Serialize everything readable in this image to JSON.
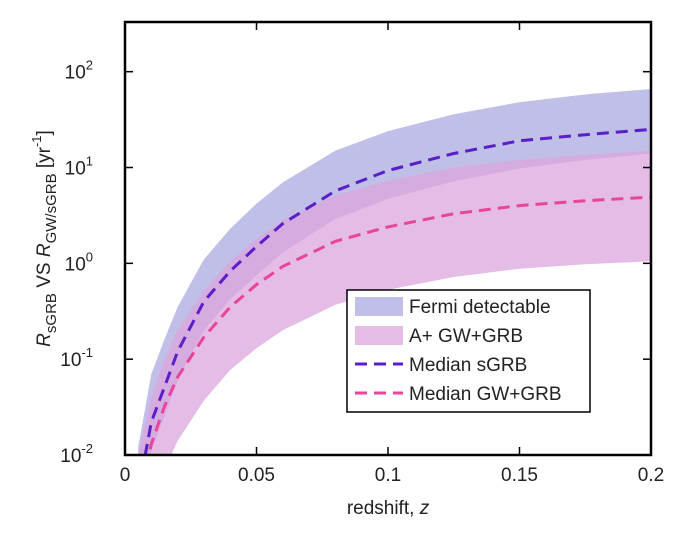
{
  "chart_data": {
    "type": "band-line",
    "x_label": [
      {
        "text": "redshift, ",
        "style": "normal"
      },
      {
        "text": "z",
        "style": "italic"
      }
    ],
    "y_label": [
      {
        "text": "R",
        "style": "italic"
      },
      {
        "text": "sGRB",
        "style": "sub"
      },
      {
        "text": " VS  ",
        "style": "normal"
      },
      {
        "text": "R",
        "style": "italic"
      },
      {
        "text": "GW/sGRB",
        "style": "sub"
      },
      {
        "text": " [yr",
        "style": "normal"
      },
      {
        "text": "-1",
        "style": "super"
      },
      {
        "text": "]",
        "style": "normal"
      }
    ],
    "x": [
      0.005,
      0.01,
      0.015,
      0.02,
      0.03,
      0.04,
      0.05,
      0.06,
      0.08,
      0.1,
      0.125,
      0.15,
      0.175,
      0.2
    ],
    "bands": [
      {
        "name": "Fermi detectable",
        "color": "#a9a9e0",
        "opacity": 0.75,
        "upper": [
          0.012,
          0.07,
          0.16,
          0.35,
          1.1,
          2.3,
          4.2,
          7,
          15,
          24,
          36,
          48,
          58,
          66
        ],
        "lower": [
          0.002,
          0.011,
          0.025,
          0.06,
          0.2,
          0.42,
          0.75,
          1.3,
          2.9,
          4.7,
          7.2,
          9.8,
          12,
          14
        ]
      },
      {
        "name": "A+ GW+GRB",
        "color": "#dba6de",
        "opacity": 0.75,
        "upper": [
          0.01,
          0.04,
          0.1,
          0.2,
          0.52,
          1.05,
          1.8,
          2.8,
          5.1,
          7.3,
          10,
          12,
          13.5,
          15
        ],
        "lower": [
          0.0006,
          0.003,
          0.007,
          0.014,
          0.037,
          0.077,
          0.13,
          0.2,
          0.37,
          0.53,
          0.72,
          0.88,
          0.98,
          1.05
        ]
      }
    ],
    "series": [
      {
        "name": "Median sGRB",
        "color": "#5a1fc8",
        "values": [
          0.004,
          0.022,
          0.051,
          0.12,
          0.4,
          0.83,
          1.5,
          2.6,
          5.7,
          9.3,
          14,
          19,
          22,
          25
        ]
      },
      {
        "name": "Median GW+GRB",
        "color": "#e8449a",
        "values": [
          0.003,
          0.013,
          0.032,
          0.065,
          0.17,
          0.35,
          0.6,
          0.93,
          1.7,
          2.4,
          3.3,
          4.0,
          4.5,
          4.9
        ]
      }
    ],
    "xlim": [
      0,
      0.2
    ],
    "xticks": [
      0,
      0.05,
      0.1,
      0.15,
      0.2
    ],
    "ylim": [
      0.01,
      330
    ],
    "log_y": true,
    "yticks": [
      {
        "value": 0.01,
        "label": "10",
        "exponent": "-2"
      },
      {
        "value": 0.1,
        "label": "10",
        "exponent": "-1"
      },
      {
        "value": 1,
        "label": "10",
        "exponent": "0"
      },
      {
        "value": 10,
        "label": "10",
        "exponent": "1"
      },
      {
        "value": 100,
        "label": "10",
        "exponent": "2"
      }
    ],
    "legend": "lower right"
  }
}
